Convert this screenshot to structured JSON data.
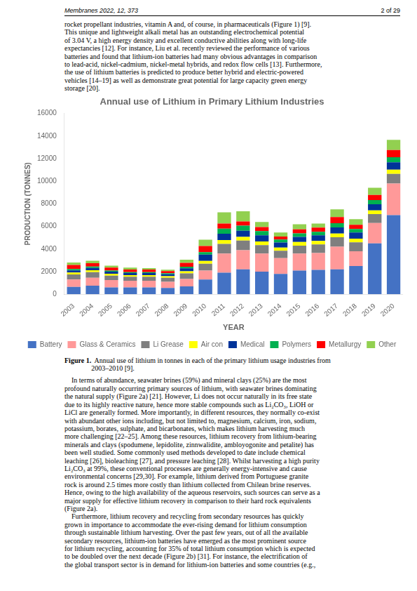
{
  "chart_data": {
    "type": "bar",
    "title": "Annual use of Lithium in Primary Lithium Industries",
    "xlabel": "YEAR",
    "ylabel": "PRODUCTION (TONNES)",
    "categories": [
      "2003",
      "2004",
      "2005",
      "2006",
      "2007",
      "2008",
      "2009",
      "2010",
      "2011",
      "2012",
      "2013",
      "2014",
      "2015",
      "2016",
      "2017",
      "2018",
      "2019",
      "2020"
    ],
    "series": [
      {
        "name": "Battery",
        "color": "#4472C4",
        "values": [
          650,
          750,
          600,
          600,
          600,
          550,
          700,
          1300,
          1900,
          2200,
          2000,
          1800,
          2100,
          2150,
          2200,
          2500,
          4500,
          7000
        ]
      },
      {
        "name": "Glass & Ceramics",
        "color": "#FF9999",
        "values": [
          650,
          700,
          650,
          600,
          600,
          550,
          650,
          800,
          1700,
          1700,
          1600,
          1400,
          1500,
          1500,
          2000,
          1300,
          1800,
          2800
        ]
      },
      {
        "name": "Li Grease",
        "color": "#7F7F7F",
        "values": [
          450,
          500,
          400,
          350,
          350,
          350,
          500,
          600,
          850,
          850,
          750,
          650,
          700,
          750,
          850,
          800,
          800,
          850
        ]
      },
      {
        "name": "Air con",
        "color": "#FFFF00",
        "values": [
          180,
          180,
          170,
          140,
          140,
          140,
          180,
          250,
          350,
          320,
          320,
          270,
          320,
          320,
          320,
          320,
          320,
          370
        ]
      },
      {
        "name": "Medical",
        "color": "#003399",
        "values": [
          180,
          190,
          180,
          180,
          180,
          180,
          270,
          550,
          550,
          550,
          550,
          450,
          450,
          500,
          550,
          550,
          550,
          650
        ]
      },
      {
        "name": "Polymers",
        "color": "#00B050",
        "values": [
          130,
          130,
          100,
          90,
          90,
          90,
          130,
          220,
          450,
          450,
          360,
          270,
          310,
          310,
          360,
          310,
          360,
          450
        ]
      },
      {
        "name": "Metallurgy",
        "color": "#FF0000",
        "values": [
          350,
          300,
          250,
          220,
          220,
          180,
          350,
          550,
          450,
          370,
          360,
          270,
          360,
          360,
          550,
          360,
          450,
          640
        ]
      },
      {
        "name": "Other",
        "color": "#92D050",
        "values": [
          220,
          220,
          180,
          180,
          130,
          130,
          270,
          550,
          1000,
          900,
          450,
          360,
          450,
          360,
          680,
          500,
          640,
          900
        ]
      }
    ],
    "ylim": [
      0,
      16000
    ],
    "yticks": [
      0,
      2000,
      4000,
      6000,
      8000,
      10000,
      12000,
      14000,
      16000
    ],
    "stacked": true,
    "grid": false,
    "legend": "bottom",
    "annotations": [
      [
        "Membranes 2022, 12, 373",
        "2 of 29"
      ],
      [
        "rocket propellant industries, vitamin A and, of course, in pharmaceuticals (Figure 1) [9].",
        "This unique and lightweight alkali metal has an outstanding electrochemical potential",
        "of 3.04 V, a high energy density and excellent conductive abilities along with long-life",
        "expectancies [12]. For instance, Liu et al. recently reviewed the performance of various",
        "batteries and found that lithium-ion batteries had many obvious advantages in comparison",
        "to lead-acid, nickel-cadmium, nickel-metal hybrids, and redox flow cells [13]. Furthermore,",
        "the use of lithium batteries is predicted to produce better hybrid and electric-powered",
        "vehicles [14–19] as well as demonstrate great potential for large capacity green energy",
        "storage [20]."
      ],
      [
        "Figure 1.",
        "  Annual use of lithium in tonnes in each of the primary lithium usage industries from",
        "2003–2010 [9]."
      ],
      [
        "    In terms of abundance, seawater brines (59%) and mineral clays (25%) are the most",
        "profound naturally occurring primary sources of lithium, with seawater brines dominating",
        "the natural supply (Figure 2a) [21]. However, Li does not occur naturally in its free state",
        "due to its highly reactive nature, hence more stable compounds such as Li₂CO₃, LiOH or",
        "LiCl are generally formed. More importantly, in different resources, they normally co-exist",
        "with abundant other ions including, but not limited to, magnesium, calcium, iron, sodium,",
        "potassium, borates, sulphate, and bicarbonates, which makes lithium harvesting much",
        "more challenging [22–25]. Among these resources, lithium recovery from lithium-bearing",
        "minerals and clays (spodumene, lepidolite, zinnwalidite, ambloyogonite and petalite) has",
        "been well studied. Some commonly used methods developed to date include chemical",
        "leaching [26], bioleaching [27], and pressure leaching [28]. Whilst harvesting a high purity",
        "Li₂CO₃ at 99%, these conventional processes are generally energy-intensive and cause",
        "environmental concerns [29,30]. For example, lithium derived from Portuguese granite",
        "rock is around 2.5 times more costly than lithium collected from Chilean brine reserves.",
        "Hence, owing to the high availability of the aqueous reservoirs, such sources can serve as a",
        "major supply for effective lithium recovery in comparison to their hard rock equivalents",
        "(Figure 2a).",
        "    Furthermore, lithium recovery and recycling from secondary resources has quickly",
        "grown in importance to accommodate the ever-rising demand for lithium consumption",
        "through sustainable lithium harvesting. Over the past few years, out of all the available",
        "secondary resources, lithium-ion batteries have emerged as the most prominent source",
        "for lithium recycling, accounting for 35% of total lithium consumption which is expected",
        "to be doubled over the next decade (Figure 2b) [31]. For instance, the electrification of",
        "the global transport sector is in demand for lithium-ion batteries and some countries (e.g.,"
      ]
    ]
  }
}
